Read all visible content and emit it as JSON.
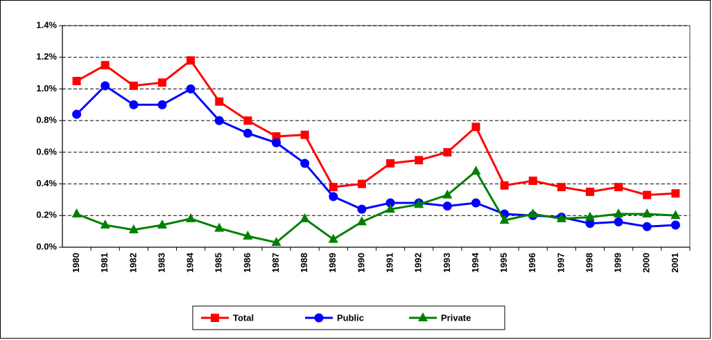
{
  "chart_data": {
    "type": "line",
    "categories": [
      "1980",
      "1981",
      "1982",
      "1983",
      "1984",
      "1985",
      "1986",
      "1987",
      "1988",
      "1989",
      "1990",
      "1991",
      "1992",
      "1993",
      "1994",
      "1995",
      "1996",
      "1997",
      "1998",
      "1999",
      "2000",
      "2001"
    ],
    "series": [
      {
        "name": "Total",
        "color": "#ff0000",
        "marker": "square",
        "values": [
          1.05,
          1.15,
          1.02,
          1.04,
          1.18,
          0.92,
          0.8,
          0.7,
          0.71,
          0.38,
          0.4,
          0.53,
          0.55,
          0.6,
          0.76,
          0.39,
          0.42,
          0.38,
          0.35,
          0.38,
          0.33,
          0.34
        ]
      },
      {
        "name": "Public",
        "color": "#0000ff",
        "marker": "circle",
        "values": [
          0.84,
          1.02,
          0.9,
          0.9,
          1.0,
          0.8,
          0.72,
          0.66,
          0.53,
          0.32,
          0.24,
          0.28,
          0.28,
          0.26,
          0.28,
          0.21,
          0.2,
          0.19,
          0.15,
          0.16,
          0.13,
          0.14
        ]
      },
      {
        "name": "Private",
        "color": "#008000",
        "marker": "triangle",
        "values": [
          0.21,
          0.14,
          0.11,
          0.14,
          0.18,
          0.12,
          0.07,
          0.03,
          0.18,
          0.05,
          0.16,
          0.24,
          0.27,
          0.33,
          0.48,
          0.17,
          0.21,
          0.18,
          0.19,
          0.21,
          0.21,
          0.2
        ]
      }
    ],
    "ylim": [
      0,
      1.4
    ],
    "yticks": [
      {
        "value": 0,
        "label": "0.0%"
      },
      {
        "value": 0.2,
        "label": "0.2%"
      },
      {
        "value": 0.4,
        "label": "0.4%"
      },
      {
        "value": 0.6,
        "label": "0.6%"
      },
      {
        "value": 0.8,
        "label": "0.8%"
      },
      {
        "value": 1.0,
        "label": "1.0%"
      },
      {
        "value": 1.2,
        "label": "1.2%"
      },
      {
        "value": 1.4,
        "label": "1.4%"
      }
    ],
    "grid": true,
    "legend": "bottom"
  }
}
